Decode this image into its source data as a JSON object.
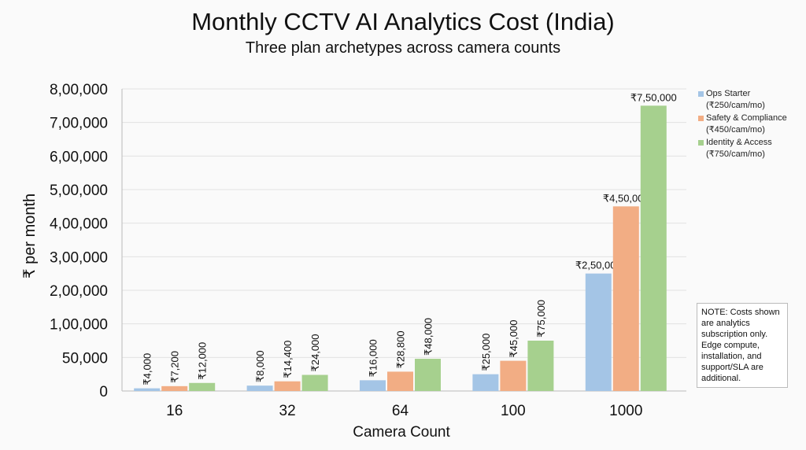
{
  "chart_data": {
    "type": "bar",
    "title": "Monthly CCTV AI Analytics Cost (India)",
    "subtitle": "Three plan archetypes across camera counts",
    "xlabel": "Camera Count",
    "ylabel": "₹ per month",
    "categories": [
      "16",
      "32",
      "64",
      "100",
      "1000"
    ],
    "y_ticks": [
      "0",
      "50,000",
      "1,00,000",
      "2,00,000",
      "3,00,000",
      "4,00,000",
      "5,00,000",
      "6,00,000",
      "7,00,000",
      "8,00,000"
    ],
    "y_tick_values": [
      0,
      50000,
      100000,
      200000,
      300000,
      400000,
      500000,
      600000,
      700000,
      800000
    ],
    "ylim": [
      0,
      800000
    ],
    "grid": true,
    "legend_position": "right",
    "series": [
      {
        "name": "Ops Starter",
        "rate": "(₹250/cam/mo)",
        "color": "#a4c5e6",
        "values": [
          4000,
          8000,
          16000,
          25000,
          250000
        ],
        "labels": [
          "₹4,000",
          "₹8,000",
          "₹16,000",
          "₹25,000",
          "₹2,50,000"
        ]
      },
      {
        "name": "Safety & Compliance",
        "rate": "(₹450/cam/mo)",
        "color": "#f2ad84",
        "values": [
          7200,
          14400,
          28800,
          45000,
          450000
        ],
        "labels": [
          "₹7,200",
          "₹14,400",
          "₹28,800",
          "₹45,000",
          "₹4,50,000"
        ]
      },
      {
        "name": "Identity & Access",
        "rate": "(₹750/cam/mo)",
        "color": "#a6d08e",
        "values": [
          12000,
          24000,
          48000,
          75000,
          750000
        ],
        "labels": [
          "₹12,000",
          "₹24,000",
          "₹48,000",
          "₹75,000",
          "₹7,50,000"
        ]
      }
    ],
    "note": "NOTE: Costs shown are analytics subscription only. Edge compute, installation, and support/SLA are additional."
  }
}
